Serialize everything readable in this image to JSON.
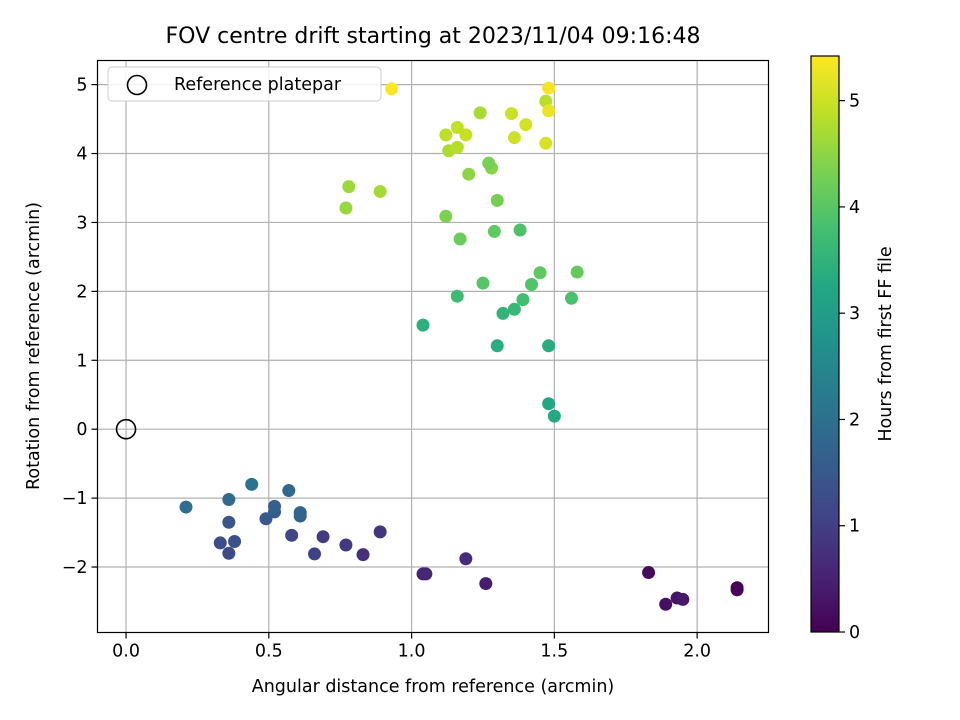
{
  "chart_data": {
    "type": "scatter",
    "title": "FOV centre drift starting at 2023/11/04 09:16:48",
    "xlabel": "Angular distance from reference (arcmin)",
    "ylabel": "Rotation from reference (arcmin)",
    "xlim": [
      -0.1,
      2.25
    ],
    "ylim": [
      -2.95,
      5.35
    ],
    "xticks": [
      0.0,
      0.5,
      1.0,
      1.5,
      2.0
    ],
    "xtick_labels": [
      "0.0",
      "0.5",
      "1.0",
      "1.5",
      "2.0"
    ],
    "yticks": [
      -2,
      -1,
      0,
      1,
      2,
      3,
      4,
      5
    ],
    "ytick_labels": [
      "−2",
      "−1",
      "0",
      "1",
      "2",
      "3",
      "4",
      "5"
    ],
    "grid": true,
    "legend": {
      "label": "Reference platepar",
      "placement": "top-left",
      "marker": "open-circle"
    },
    "reference_point": {
      "x": 0.0,
      "y": 0.0
    },
    "colorbar": {
      "label": "Hours from first FF file",
      "colormap": "viridis",
      "range": [
        0,
        5.42
      ],
      "ticks": [
        0,
        1,
        2,
        3,
        4,
        5
      ],
      "tick_labels": [
        "0",
        "1",
        "2",
        "3",
        "4",
        "5"
      ]
    },
    "points": [
      {
        "x": 2.14,
        "y": -2.3,
        "h": 0.0
      },
      {
        "x": 2.14,
        "y": -2.33,
        "h": 0.08
      },
      {
        "x": 1.83,
        "y": -2.08,
        "h": 0.15
      },
      {
        "x": 1.89,
        "y": -2.54,
        "h": 0.22
      },
      {
        "x": 1.93,
        "y": -2.45,
        "h": 0.3
      },
      {
        "x": 1.95,
        "y": -2.47,
        "h": 0.37
      },
      {
        "x": 1.26,
        "y": -2.24,
        "h": 0.45
      },
      {
        "x": 1.04,
        "y": -2.1,
        "h": 0.52
      },
      {
        "x": 1.05,
        "y": -2.1,
        "h": 0.6
      },
      {
        "x": 1.19,
        "y": -1.88,
        "h": 0.68
      },
      {
        "x": 0.83,
        "y": -1.82,
        "h": 0.75
      },
      {
        "x": 0.89,
        "y": -1.49,
        "h": 0.83
      },
      {
        "x": 0.77,
        "y": -1.68,
        "h": 0.9
      },
      {
        "x": 0.69,
        "y": -1.56,
        "h": 0.97
      },
      {
        "x": 0.66,
        "y": -1.81,
        "h": 1.05
      },
      {
        "x": 0.58,
        "y": -1.54,
        "h": 1.12
      },
      {
        "x": 0.36,
        "y": -1.8,
        "h": 1.2
      },
      {
        "x": 0.33,
        "y": -1.65,
        "h": 1.27
      },
      {
        "x": 0.38,
        "y": -1.63,
        "h": 1.35
      },
      {
        "x": 0.36,
        "y": -1.35,
        "h": 1.42
      },
      {
        "x": 0.49,
        "y": -1.3,
        "h": 1.5
      },
      {
        "x": 0.52,
        "y": -1.2,
        "h": 1.57
      },
      {
        "x": 0.52,
        "y": -1.12,
        "h": 1.63
      },
      {
        "x": 0.61,
        "y": -1.26,
        "h": 1.7
      },
      {
        "x": 0.61,
        "y": -1.21,
        "h": 1.76
      },
      {
        "x": 0.57,
        "y": -0.89,
        "h": 1.82
      },
      {
        "x": 0.36,
        "y": -1.02,
        "h": 1.88
      },
      {
        "x": 0.21,
        "y": -1.13,
        "h": 1.95
      },
      {
        "x": 0.44,
        "y": -0.8,
        "h": 2.05
      },
      {
        "x": 1.48,
        "y": 0.37,
        "h": 3.22
      },
      {
        "x": 1.5,
        "y": 0.19,
        "h": 3.28
      },
      {
        "x": 1.48,
        "y": 1.21,
        "h": 3.35
      },
      {
        "x": 1.3,
        "y": 1.21,
        "h": 3.4
      },
      {
        "x": 1.04,
        "y": 1.51,
        "h": 3.45
      },
      {
        "x": 1.32,
        "y": 1.68,
        "h": 3.52
      },
      {
        "x": 1.36,
        "y": 1.74,
        "h": 3.6
      },
      {
        "x": 1.16,
        "y": 1.93,
        "h": 3.7
      },
      {
        "x": 1.39,
        "y": 1.88,
        "h": 3.78
      },
      {
        "x": 1.56,
        "y": 1.9,
        "h": 3.85
      },
      {
        "x": 1.42,
        "y": 2.1,
        "h": 3.92
      },
      {
        "x": 1.25,
        "y": 2.12,
        "h": 3.98
      },
      {
        "x": 1.45,
        "y": 2.27,
        "h": 4.05
      },
      {
        "x": 1.58,
        "y": 2.28,
        "h": 4.12
      },
      {
        "x": 1.38,
        "y": 2.89,
        "h": 3.88
      },
      {
        "x": 1.29,
        "y": 2.87,
        "h": 4.08
      },
      {
        "x": 1.17,
        "y": 2.76,
        "h": 4.18
      },
      {
        "x": 1.3,
        "y": 3.32,
        "h": 4.28
      },
      {
        "x": 1.12,
        "y": 3.09,
        "h": 4.35
      },
      {
        "x": 1.28,
        "y": 3.79,
        "h": 4.42
      },
      {
        "x": 1.27,
        "y": 3.86,
        "h": 4.32
      },
      {
        "x": 1.2,
        "y": 3.7,
        "h": 4.5
      },
      {
        "x": 0.77,
        "y": 3.21,
        "h": 4.58
      },
      {
        "x": 0.78,
        "y": 3.52,
        "h": 4.62
      },
      {
        "x": 0.89,
        "y": 3.45,
        "h": 4.68
      },
      {
        "x": 1.13,
        "y": 4.04,
        "h": 4.75
      },
      {
        "x": 1.16,
        "y": 4.09,
        "h": 4.82
      },
      {
        "x": 1.12,
        "y": 4.27,
        "h": 4.88
      },
      {
        "x": 1.16,
        "y": 4.38,
        "h": 4.92
      },
      {
        "x": 1.19,
        "y": 4.27,
        "h": 4.95
      },
      {
        "x": 1.24,
        "y": 4.59,
        "h": 4.7
      },
      {
        "x": 1.35,
        "y": 4.58,
        "h": 4.98
      },
      {
        "x": 1.36,
        "y": 4.23,
        "h": 5.02
      },
      {
        "x": 1.4,
        "y": 4.42,
        "h": 5.06
      },
      {
        "x": 1.47,
        "y": 4.15,
        "h": 5.1
      },
      {
        "x": 1.47,
        "y": 4.76,
        "h": 4.85
      },
      {
        "x": 1.48,
        "y": 4.62,
        "h": 5.25
      },
      {
        "x": 1.48,
        "y": 4.95,
        "h": 5.35
      },
      {
        "x": 0.93,
        "y": 4.94,
        "h": 5.42
      }
    ]
  }
}
